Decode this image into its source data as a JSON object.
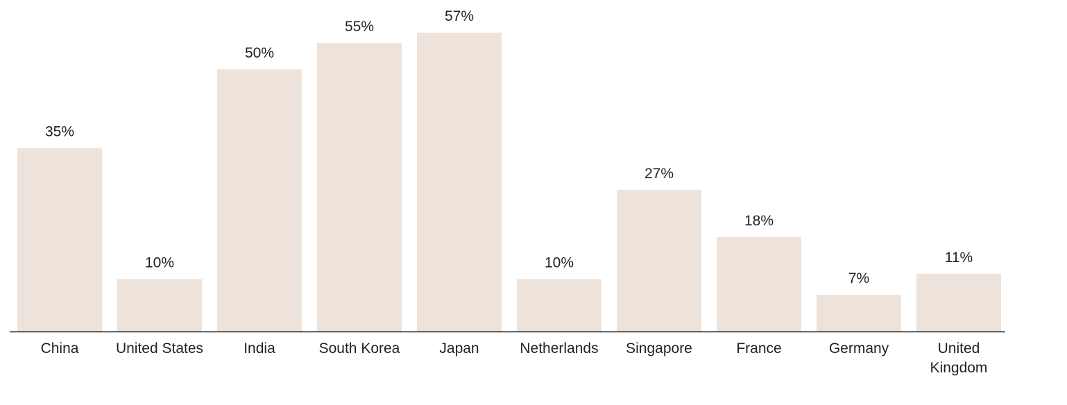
{
  "chart_data": {
    "type": "bar",
    "categories": [
      "China",
      "United States",
      "India",
      "South Korea",
      "Japan",
      "Netherlands",
      "Singapore",
      "France",
      "Germany",
      "United Kingdom"
    ],
    "values": [
      35,
      10,
      50,
      55,
      57,
      10,
      27,
      18,
      7,
      11
    ],
    "value_labels": [
      "35%",
      "10%",
      "50%",
      "55%",
      "57%",
      "10%",
      "27%",
      "18%",
      "7%",
      "11%"
    ],
    "color": "#ede3db"
  }
}
